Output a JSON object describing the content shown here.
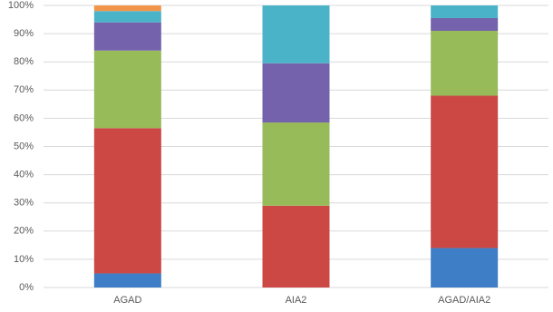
{
  "chart_data": {
    "type": "stacked-bar",
    "categories": [
      "AGAD",
      "AIA2",
      "AGAD/AIA2"
    ],
    "series": [
      {
        "color": "#3d7ec6",
        "values": [
          5,
          0,
          14
        ]
      },
      {
        "color": "#cc4844",
        "values": [
          51.5,
          29,
          54
        ]
      },
      {
        "color": "#97bb58",
        "values": [
          27.5,
          29.5,
          23
        ]
      },
      {
        "color": "#7463ac",
        "values": [
          10,
          21,
          4.5
        ]
      },
      {
        "color": "#4bb3c8",
        "values": [
          4,
          20.5,
          4.5
        ]
      },
      {
        "color": "#f0954a",
        "values": [
          2,
          0,
          0
        ]
      }
    ],
    "ylim": [
      0,
      100
    ],
    "yticks": [
      {
        "value": 0,
        "label": "0%"
      },
      {
        "value": 10,
        "label": "10%"
      },
      {
        "value": 20,
        "label": "20%"
      },
      {
        "value": 30,
        "label": "30%"
      },
      {
        "value": 40,
        "label": "40%"
      },
      {
        "value": 50,
        "label": "50%"
      },
      {
        "value": 60,
        "label": "60%"
      },
      {
        "value": 70,
        "label": "70%"
      },
      {
        "value": 80,
        "label": "80%"
      },
      {
        "value": 90,
        "label": "90%"
      },
      {
        "value": 100,
        "label": "100%"
      }
    ],
    "grid": true
  }
}
